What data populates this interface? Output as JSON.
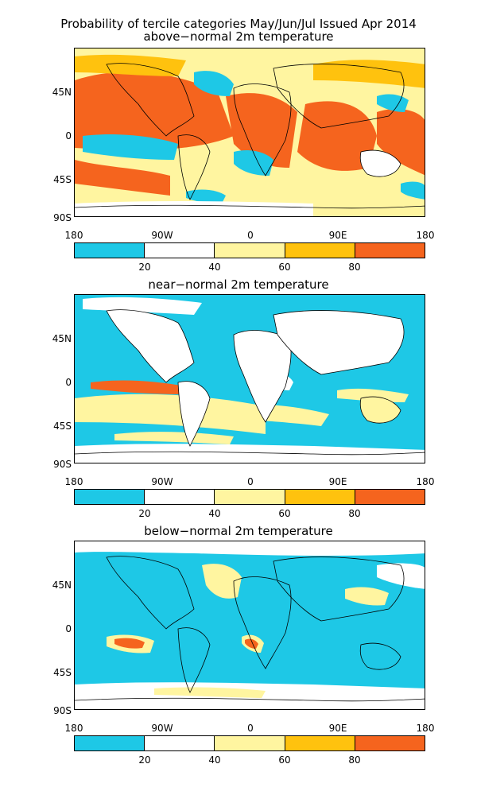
{
  "header": {
    "title_line1": "Probability of tercile categories May/Jun/Jul Issued Apr 2014",
    "title_line2": "above−normal 2m temperature"
  },
  "panels": [
    {
      "title": "above−normal 2m temperature"
    },
    {
      "title": "near−normal 2m temperature"
    },
    {
      "title": "below−normal 2m temperature"
    }
  ],
  "lat_ticks": [
    "45N",
    "0",
    "45S",
    "90S"
  ],
  "lon_ticks": [
    "180",
    "90W",
    "0",
    "90E",
    "180"
  ],
  "colorbar": {
    "labels": [
      "20",
      "40",
      "60",
      "80"
    ],
    "colors": [
      "#1ec8e6",
      "#ffffff",
      "#fff5a0",
      "#ffc20e",
      "#f5641e"
    ]
  },
  "colors": {
    "ocean_blue": "#1ec8e6",
    "pale_yellow": "#fff5a0",
    "gold": "#ffc20e",
    "orange": "#f5641e",
    "white": "#ffffff",
    "border": "#000000"
  }
}
